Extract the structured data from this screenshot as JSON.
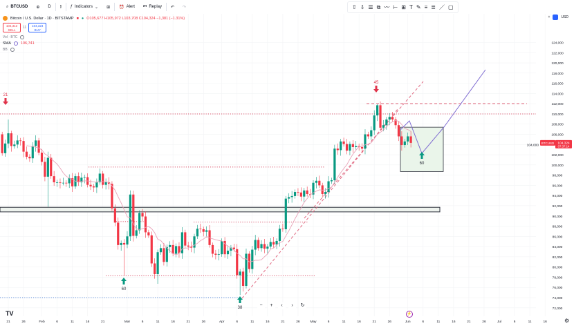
{
  "toolbar": {
    "symbol": "BTCUSD",
    "interval": "D",
    "indicators": "Indicators",
    "alert": "Alert",
    "replay": "Replay"
  },
  "legend": {
    "title": "Bitcoin / U.S. Dollar · 1D · BITSTAMP",
    "ohlc": "O105,677 H105,972 L103,708 C104,324 −1,381 (−1.31%)",
    "sell_price": "104,313",
    "sell_label": "SELL",
    "spread": "11",
    "buy_price": "104,324",
    "buy_label": "BUY",
    "vol_label": "Vol · BTC",
    "sma_label": "SMA",
    "sma_value": "106,741",
    "bb_label": "BB"
  },
  "right_top": {
    "plus": "+",
    "currency": "USD"
  },
  "price_tag": {
    "symbol": "BTCUSD",
    "price": "104,324",
    "countdown": "07:37:14"
  },
  "colors": {
    "up": "#089981",
    "down": "#f23645",
    "sma": "#e8a3b8",
    "projection": "#7e6bd1",
    "zone_fill": "#eaf5ea"
  },
  "annotations": {
    "a21": "21",
    "a45": "45",
    "a60_left": "60",
    "a38": "38",
    "a60_right": "60"
  },
  "zoom_controls": {
    "minus": "−",
    "plus": "+",
    "left": "‹",
    "right": "›",
    "reset": "↻"
  },
  "chart_data": {
    "type": "candlestick",
    "symbol": "BTCUSD",
    "interval": "1D",
    "start_date": "01-19",
    "closes": [
      102300,
      104200,
      106200,
      103700,
      104000,
      104800,
      104700,
      102600,
      101600,
      101300,
      103700,
      104800,
      102400,
      100600,
      97700,
      101400,
      97800,
      96600,
      96600,
      96500,
      96500,
      96400,
      97400,
      95800,
      97800,
      96600,
      97500,
      97600,
      96100,
      95800,
      95600,
      96600,
      98300,
      96100,
      96600,
      96300,
      91500,
      88700,
      84300,
      84700,
      84400,
      86000,
      94200,
      86100,
      87200,
      90600,
      89900,
      86800,
      86200,
      80700,
      78600,
      82900,
      83700,
      81000,
      83900,
      84300,
      82600,
      84100,
      82700,
      86800,
      84200,
      84000,
      83800,
      86000,
      87500,
      87400,
      86900,
      87200,
      84300,
      82600,
      82400,
      82500,
      85100,
      82500,
      83200,
      83800,
      83500,
      78400,
      79100,
      76300,
      82600,
      79600,
      83400,
      85300,
      83700,
      84500,
      83600,
      84000,
      84900,
      84400,
      85100,
      87500,
      87400,
      93400,
      93700,
      93900,
      94700,
      94600,
      93800,
      95000,
      94300,
      94200,
      96500,
      96900,
      96000,
      94300,
      94700,
      96800,
      97000,
      103200,
      102900,
      104600,
      104100,
      102800,
      104100,
      103500,
      103700,
      103500,
      103200,
      106000,
      105600,
      106800,
      109700,
      111700,
      107300,
      107800,
      108900,
      109400,
      108900,
      107800,
      105600,
      103900,
      104600,
      105600,
      104324
    ],
    "first_open": 106000,
    "notable_highs": {
      "01-21": 108900,
      "03-02": 95000,
      "05-22": 111900,
      "02-03": 102600
    },
    "notable_lows": {
      "02-03": 91800,
      "02-28": 78300,
      "03-11": 76700,
      "04-07": 74500
    },
    "price_ticks": [
      72000,
      74000,
      76000,
      78000,
      80000,
      82000,
      84000,
      86000,
      88000,
      90000,
      92000,
      94000,
      96000,
      98000,
      100000,
      102000,
      104000,
      106000,
      108000,
      110000,
      112000,
      114000,
      116000,
      118000,
      120000,
      122000,
      124000
    ],
    "time_ticks": [
      [
        "01-21",
        "21"
      ],
      [
        "01-26",
        "26"
      ],
      [
        "02-01",
        "Feb"
      ],
      [
        "02-06",
        "6"
      ],
      [
        "02-11",
        "11"
      ],
      [
        "02-16",
        "16"
      ],
      [
        "02-21",
        "21"
      ],
      [
        "03-01",
        "Mar"
      ],
      [
        "03-06",
        "6"
      ],
      [
        "03-11",
        "11"
      ],
      [
        "03-16",
        "16"
      ],
      [
        "03-21",
        "21"
      ],
      [
        "03-26",
        "26"
      ],
      [
        "04-01",
        "Apr"
      ],
      [
        "04-06",
        "6"
      ],
      [
        "04-11",
        "11"
      ],
      [
        "04-16",
        "16"
      ],
      [
        "04-21",
        "21"
      ],
      [
        "04-26",
        "26"
      ],
      [
        "05-01",
        "May"
      ],
      [
        "05-06",
        "6"
      ],
      [
        "05-11",
        "11"
      ],
      [
        "05-16",
        "16"
      ],
      [
        "05-21",
        "21"
      ],
      [
        "05-26",
        "26"
      ],
      [
        "06-01",
        "Jun"
      ],
      [
        "06-06",
        "6"
      ],
      [
        "06-11",
        "11"
      ],
      [
        "06-16",
        "16"
      ],
      [
        "06-21",
        "21"
      ],
      [
        "06-26",
        "26"
      ],
      [
        "07-01",
        "Jul"
      ],
      [
        "07-06",
        "6"
      ],
      [
        "07-11",
        "11"
      ],
      [
        "07-16",
        "16"
      ]
    ],
    "ylim": [
      71000,
      126000
    ],
    "grid": true
  }
}
